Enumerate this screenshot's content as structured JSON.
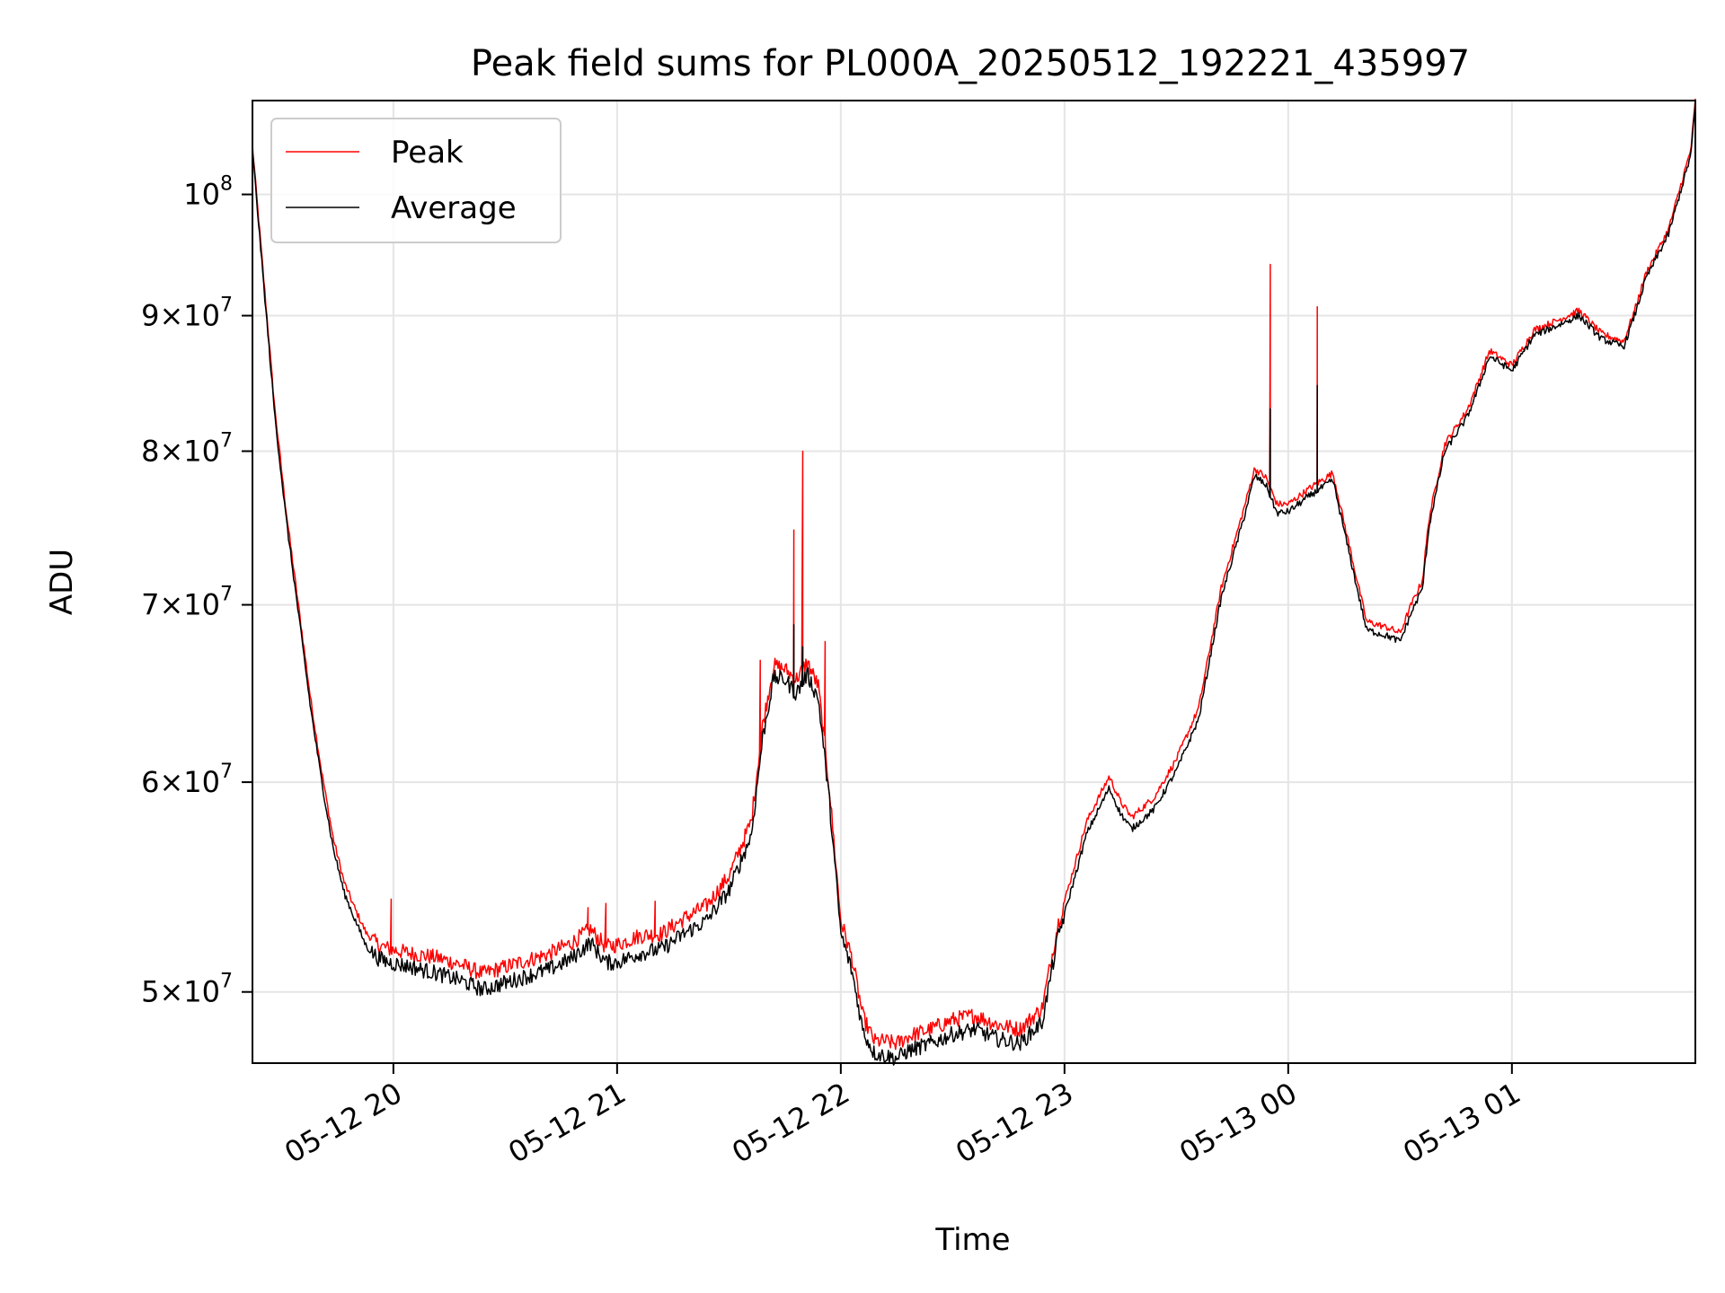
{
  "chart_data": {
    "type": "line",
    "title": "Peak field sums for PL000A_20250512_192221_435997",
    "xlabel": "Time",
    "ylabel": "ADU",
    "yscale": "log",
    "ylim": [
      47000000,
      108500000
    ],
    "xlim_hours": [
      19.37,
      25.82
    ],
    "grid": true,
    "legend_position": "upper-left",
    "x_ticks": [
      {
        "t": 20,
        "label": "05-12 20"
      },
      {
        "t": 21,
        "label": "05-12 21"
      },
      {
        "t": 22,
        "label": "05-12 22"
      },
      {
        "t": 23,
        "label": "05-12 23"
      },
      {
        "t": 24,
        "label": "05-13 00"
      },
      {
        "t": 25,
        "label": "05-13 01"
      }
    ],
    "y_ticks": [
      {
        "v": 50000000,
        "mant": "5",
        "exp": "7"
      },
      {
        "v": 60000000,
        "mant": "6",
        "exp": "7"
      },
      {
        "v": 70000000,
        "mant": "7",
        "exp": "7"
      },
      {
        "v": 80000000,
        "mant": "8",
        "exp": "7"
      },
      {
        "v": 90000000,
        "mant": "9",
        "exp": "7"
      },
      {
        "v": 100000000,
        "mant": "",
        "exp": "8"
      }
    ],
    "series": [
      {
        "name": "Peak",
        "color": "#ff0000",
        "t": [
          19.37,
          19.42,
          19.47,
          19.52,
          19.58,
          19.63,
          19.68,
          19.73,
          19.78,
          19.83,
          19.88,
          19.93,
          19.98,
          20.03,
          20.08,
          20.2,
          20.3,
          20.4,
          20.5,
          20.6,
          20.7,
          20.8,
          20.88,
          20.95,
          21.0,
          21.1,
          21.2,
          21.3,
          21.4,
          21.5,
          21.6,
          21.65,
          21.7,
          21.75,
          21.8,
          21.85,
          21.9,
          21.95,
          22.0,
          22.05,
          22.1,
          22.15,
          22.2,
          22.25,
          22.3,
          22.4,
          22.5,
          22.6,
          22.7,
          22.8,
          22.9,
          22.97,
          23.05,
          23.1,
          23.2,
          23.25,
          23.3,
          23.4,
          23.5,
          23.6,
          23.7,
          23.8,
          23.85,
          23.9,
          23.95,
          24.0,
          24.1,
          24.2,
          24.3,
          24.35,
          24.45,
          24.5,
          24.55,
          24.6,
          24.63,
          24.7,
          24.8,
          24.85,
          24.9,
          25.0,
          25.1,
          25.2,
          25.3,
          25.4,
          25.5,
          25.55,
          25.6,
          25.7,
          25.8,
          25.82
        ],
        "v": [
          104300000,
          93000000,
          83000000,
          76000000,
          69500000,
          64500000,
          60500000,
          57200000,
          55000000,
          53700000,
          52600000,
          52100000,
          51900000,
          51800000,
          51700000,
          51500000,
          51200000,
          50800000,
          51100000,
          51400000,
          51700000,
          52200000,
          52800000,
          52000000,
          52100000,
          52500000,
          52600000,
          53300000,
          53900000,
          55300000,
          58000000,
          63000000,
          66400000,
          66200000,
          65600000,
          66600000,
          65200000,
          59500000,
          53200000,
          51500000,
          48900000,
          47900000,
          47900000,
          47800000,
          48100000,
          48400000,
          48800000,
          49000000,
          48600000,
          48400000,
          49300000,
          53000000,
          56000000,
          58000000,
          60300000,
          59000000,
          58200000,
          59200000,
          61200000,
          64000000,
          71000000,
          76000000,
          78800000,
          78200000,
          76400000,
          76400000,
          77500000,
          78500000,
          72000000,
          69000000,
          68600000,
          68300000,
          70000000,
          71500000,
          75500000,
          80500000,
          82900000,
          85000000,
          87300000,
          86200000,
          88900000,
          89600000,
          90400000,
          88600000,
          88000000,
          90500000,
          93400000,
          97000000,
          104000000,
          108500000
        ],
        "spikes": [
          {
            "t": 19.99,
            "v": 54200000
          },
          {
            "t": 20.87,
            "v": 53800000
          },
          {
            "t": 20.95,
            "v": 54000000
          },
          {
            "t": 21.17,
            "v": 54100000
          },
          {
            "t": 21.64,
            "v": 66700000
          },
          {
            "t": 21.79,
            "v": 74700000
          },
          {
            "t": 21.83,
            "v": 80000000
          },
          {
            "t": 21.93,
            "v": 67800000
          },
          {
            "t": 23.92,
            "v": 94100000
          },
          {
            "t": 24.13,
            "v": 90700000
          }
        ]
      },
      {
        "name": "Average",
        "color": "#000000",
        "t": [
          19.37,
          19.42,
          19.47,
          19.52,
          19.58,
          19.63,
          19.68,
          19.73,
          19.78,
          19.83,
          19.88,
          19.93,
          19.98,
          20.03,
          20.08,
          20.2,
          20.3,
          20.4,
          20.5,
          20.6,
          20.7,
          20.8,
          20.88,
          20.95,
          21.0,
          21.1,
          21.2,
          21.3,
          21.4,
          21.5,
          21.6,
          21.65,
          21.7,
          21.75,
          21.8,
          21.85,
          21.9,
          21.95,
          22.0,
          22.05,
          22.1,
          22.15,
          22.2,
          22.25,
          22.3,
          22.4,
          22.5,
          22.6,
          22.7,
          22.8,
          22.9,
          22.97,
          23.05,
          23.1,
          23.2,
          23.25,
          23.3,
          23.4,
          23.5,
          23.6,
          23.7,
          23.8,
          23.85,
          23.9,
          23.95,
          24.0,
          24.1,
          24.2,
          24.3,
          24.35,
          24.45,
          24.5,
          24.55,
          24.6,
          24.63,
          24.7,
          24.8,
          24.85,
          24.9,
          25.0,
          25.1,
          25.2,
          25.3,
          25.4,
          25.5,
          25.55,
          25.6,
          25.7,
          25.8,
          25.82
        ],
        "v": [
          104000000,
          92500000,
          82500000,
          75500000,
          69000000,
          64000000,
          60000000,
          56700000,
          54500000,
          53200000,
          52000000,
          51500000,
          51300000,
          51200000,
          51100000,
          50800000,
          50500000,
          50100000,
          50400000,
          50700000,
          51000000,
          51500000,
          52200000,
          51300000,
          51300000,
          51700000,
          51900000,
          52600000,
          53200000,
          54600000,
          57300000,
          62300000,
          65700000,
          65600000,
          64800000,
          65900000,
          64500000,
          58900000,
          52600000,
          50900000,
          48300000,
          47400000,
          47300000,
          47200000,
          47500000,
          47800000,
          48200000,
          48400000,
          48000000,
          47800000,
          48700000,
          52400000,
          55400000,
          57400000,
          59700000,
          58400000,
          57600000,
          58600000,
          60600000,
          63400000,
          70400000,
          75400000,
          78300000,
          77700000,
          75800000,
          75900000,
          77000000,
          78000000,
          71500000,
          68500000,
          68100000,
          67800000,
          69500000,
          71000000,
          75000000,
          80000000,
          82400000,
          84500000,
          86900000,
          85800000,
          88500000,
          89200000,
          90000000,
          88200000,
          87600000,
          90100000,
          93000000,
          96600000,
          103500000,
          108200000
        ],
        "spikes": [
          {
            "t": 21.79,
            "v": 68800000
          },
          {
            "t": 21.83,
            "v": 67500000
          },
          {
            "t": 23.92,
            "v": 83000000
          },
          {
            "t": 24.13,
            "v": 84700000
          }
        ]
      }
    ]
  }
}
